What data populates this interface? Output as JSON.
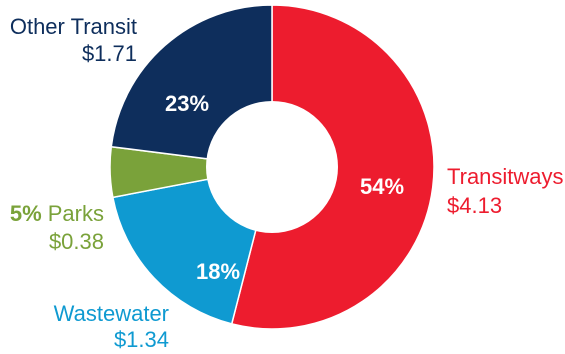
{
  "chart_data": {
    "type": "pie",
    "variant": "donut",
    "slices": [
      {
        "name": "Transitways",
        "percent": 54,
        "percent_label": "54%",
        "value_label": "$4.13",
        "value": 4.13,
        "color": "#ED1C2E"
      },
      {
        "name": "Wastewater",
        "percent": 18,
        "percent_label": "18%",
        "value_label": "$1.34",
        "value": 1.34,
        "color": "#0F9AD1"
      },
      {
        "name": "Parks",
        "percent": 5,
        "percent_label": "5%",
        "value_label": "$0.38",
        "value": 0.38,
        "color": "#7AA23A"
      },
      {
        "name": "Other Transit",
        "percent": 23,
        "percent_label": "23%",
        "value_label": "$1.71",
        "value": 1.71,
        "color": "#0E2E5C"
      }
    ]
  }
}
